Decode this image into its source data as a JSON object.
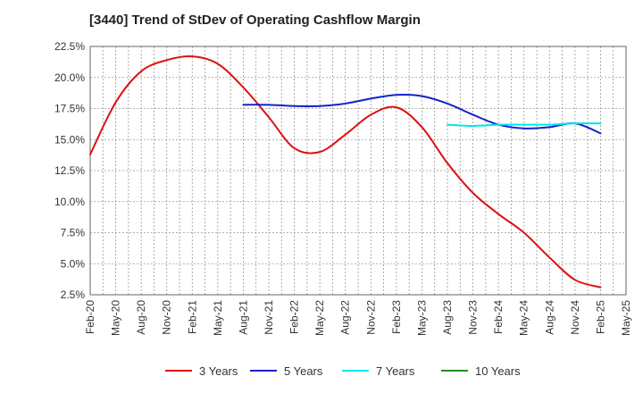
{
  "chart_data": {
    "type": "line",
    "title": "[3440]  Trend of StDev of Operating Cashflow Margin",
    "xlabel": "",
    "ylabel": "",
    "ylim": [
      2.5,
      22.5
    ],
    "y_ticks": [
      "2.5%",
      "5.0%",
      "7.5%",
      "10.0%",
      "12.5%",
      "15.0%",
      "17.5%",
      "20.0%",
      "22.5%"
    ],
    "y_tick_values": [
      2.5,
      5.0,
      7.5,
      10.0,
      12.5,
      15.0,
      17.5,
      20.0,
      22.5
    ],
    "categories": [
      "Feb-20",
      "May-20",
      "Aug-20",
      "Nov-20",
      "Feb-21",
      "May-21",
      "Aug-21",
      "Nov-21",
      "Feb-22",
      "May-22",
      "Aug-22",
      "Nov-22",
      "Feb-23",
      "May-23",
      "Aug-23",
      "Nov-23",
      "Feb-24",
      "May-24",
      "Aug-24",
      "Nov-24",
      "Feb-25",
      "May-25"
    ],
    "grid": true,
    "series": [
      {
        "name": "3 Years",
        "color": "#dd1111",
        "values": [
          13.8,
          18.0,
          20.5,
          21.4,
          21.7,
          21.1,
          19.2,
          16.8,
          14.3,
          14.0,
          15.4,
          17.0,
          17.6,
          16.0,
          13.1,
          10.7,
          9.0,
          7.5,
          5.5,
          3.7,
          3.1,
          null
        ]
      },
      {
        "name": "5 Years",
        "color": "#1122cc",
        "values": [
          null,
          null,
          null,
          null,
          null,
          null,
          17.8,
          17.8,
          17.7,
          17.7,
          17.9,
          18.3,
          18.6,
          18.5,
          17.9,
          17.0,
          16.2,
          15.9,
          16.0,
          16.3,
          15.5,
          null
        ]
      },
      {
        "name": "7 Years",
        "color": "#00e5ee",
        "values": [
          null,
          null,
          null,
          null,
          null,
          null,
          null,
          null,
          null,
          null,
          null,
          null,
          null,
          null,
          16.2,
          16.1,
          16.2,
          16.2,
          16.2,
          16.3,
          16.3,
          null
        ]
      },
      {
        "name": "10 Years",
        "color": "#228b22",
        "values": [
          null,
          null,
          null,
          null,
          null,
          null,
          null,
          null,
          null,
          null,
          null,
          null,
          null,
          null,
          null,
          null,
          null,
          null,
          null,
          null,
          null,
          null
        ]
      }
    ]
  }
}
